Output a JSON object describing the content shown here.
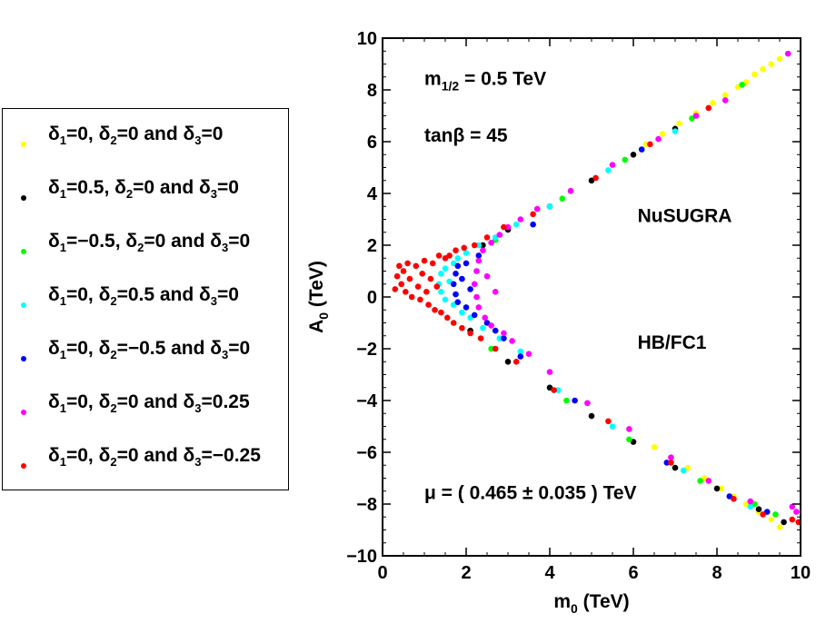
{
  "legend": {
    "entries": [
      {
        "label_html": "δ<sub>1</sub>=0, δ<sub>2</sub>=0 and δ<sub>3</sub>=0",
        "color": "#ffff00"
      },
      {
        "label_html": "δ<sub>1</sub>=0.5, δ<sub>2</sub>=0 and δ<sub>3</sub>=0",
        "color": "#000000"
      },
      {
        "label_html": "δ<sub>1</sub>=−0.5, δ<sub>2</sub>=0 and δ<sub>3</sub>=0",
        "color": "#00ff00"
      },
      {
        "label_html": "δ<sub>1</sub>=0, δ<sub>2</sub>=0.5 and δ<sub>3</sub>=0",
        "color": "#00ffff"
      },
      {
        "label_html": "δ<sub>1</sub>=0, δ<sub>2</sub>=−0.5 and δ<sub>3</sub>=0",
        "color": "#0000ff"
      },
      {
        "label_html": "δ<sub>1</sub>=0, δ<sub>2</sub>=0 and δ<sub>3</sub>=0.25",
        "color": "#ff00ff"
      },
      {
        "label_html": "δ<sub>1</sub>=0, δ<sub>2</sub>=0 and δ<sub>3</sub>=−0.25",
        "color": "#ff0000"
      }
    ]
  },
  "chart_data": {
    "type": "scatter",
    "xlabel": "m",
    "xlabel_sub": "0",
    "xlabel_unit": " (TeV)",
    "ylabel": "A",
    "ylabel_sub": "0",
    "ylabel_unit": " (TeV)",
    "xlim": [
      0,
      10
    ],
    "ylim": [
      -10,
      10
    ],
    "x_ticks": [
      0,
      2,
      4,
      6,
      8,
      10
    ],
    "y_ticks": [
      -10,
      -8,
      -6,
      -4,
      -2,
      0,
      2,
      4,
      6,
      8,
      10
    ],
    "annotations": [
      {
        "id": "mhalf",
        "text": "m",
        "sub": "1/2",
        "rest": " = 0.5 TeV",
        "x": 1.0,
        "y": 8.2
      },
      {
        "id": "tanb",
        "text": "tanβ = 45",
        "x": 1.0,
        "y": 6.0
      },
      {
        "id": "nusugra",
        "text": "NuSUGRA",
        "x": 6.1,
        "y": 2.9
      },
      {
        "id": "hbfc1",
        "text": "HB/FC1",
        "x": 6.1,
        "y": -2.0
      },
      {
        "id": "mu",
        "text": "μ = ( 0.465 ± 0.035 ) TeV",
        "x": 1.0,
        "y": -7.8
      }
    ],
    "series": [
      {
        "name": "δ1=0, δ2=0 and δ3=0",
        "color": "#ffff00",
        "points": [
          [
            9.5,
            9.2
          ],
          [
            9.3,
            9.0
          ],
          [
            9.1,
            8.8
          ],
          [
            8.9,
            8.6
          ],
          [
            8.7,
            8.3
          ],
          [
            8.5,
            8.1
          ],
          [
            8.2,
            7.8
          ],
          [
            7.9,
            7.5
          ],
          [
            7.5,
            7.1
          ],
          [
            7.1,
            6.7
          ],
          [
            6.7,
            6.3
          ],
          [
            6.3,
            5.9
          ],
          [
            9.5,
            -8.9
          ],
          [
            9.3,
            -8.6
          ],
          [
            9.0,
            -8.3
          ],
          [
            8.7,
            -8.0
          ],
          [
            8.4,
            -7.7
          ],
          [
            8.1,
            -7.4
          ],
          [
            7.7,
            -7.0
          ],
          [
            7.3,
            -6.6
          ],
          [
            6.9,
            -6.2
          ],
          [
            6.5,
            -5.8
          ]
        ]
      },
      {
        "name": "δ1=0.5, δ2=0 and δ3=0",
        "color": "#000000",
        "points": [
          [
            7.0,
            6.5
          ],
          [
            6.0,
            5.5
          ],
          [
            5.0,
            4.5
          ],
          [
            4.0,
            3.5
          ],
          [
            3.0,
            2.6
          ],
          [
            2.4,
            2.0
          ],
          [
            2.1,
            -1.3
          ],
          [
            3.0,
            -2.5
          ],
          [
            4.0,
            -3.5
          ],
          [
            5.0,
            -4.6
          ],
          [
            6.0,
            -5.6
          ],
          [
            7.0,
            -6.6
          ],
          [
            8.0,
            -7.4
          ],
          [
            9.0,
            -8.2
          ],
          [
            9.6,
            -8.7
          ]
        ]
      },
      {
        "name": "δ1=−0.5, δ2=0 and δ3=0",
        "color": "#00ff00",
        "points": [
          [
            8.6,
            8.2
          ],
          [
            7.4,
            6.9
          ],
          [
            5.8,
            5.3
          ],
          [
            4.3,
            3.8
          ],
          [
            2.7,
            2.2
          ],
          [
            2.6,
            -2.0
          ],
          [
            4.4,
            -4.0
          ],
          [
            5.9,
            -5.5
          ],
          [
            7.6,
            -7.1
          ],
          [
            8.9,
            -8.0
          ],
          [
            9.4,
            -8.4
          ]
        ]
      },
      {
        "name": "δ1=0, δ2=0.5 and δ3=0",
        "color": "#00ffff",
        "points": [
          [
            1.35,
            0.5
          ],
          [
            1.4,
            0.9
          ],
          [
            1.4,
            0.2
          ],
          [
            1.5,
            1.1
          ],
          [
            1.5,
            -0.1
          ],
          [
            1.6,
            0.6
          ],
          [
            1.7,
            1.3
          ],
          [
            1.7,
            -0.3
          ],
          [
            1.8,
            1.5
          ],
          [
            1.9,
            -0.6
          ],
          [
            2.0,
            1.7
          ],
          [
            2.1,
            -0.8
          ],
          [
            2.3,
            2.0
          ],
          [
            2.4,
            -1.2
          ],
          [
            2.7,
            2.3
          ],
          [
            2.8,
            -1.6
          ],
          [
            3.2,
            2.8
          ],
          [
            3.3,
            -2.1
          ],
          [
            4.0,
            3.5
          ],
          [
            4.2,
            -3.6
          ],
          [
            5.4,
            4.9
          ],
          [
            5.5,
            -5.0
          ],
          [
            7.0,
            6.4
          ],
          [
            7.2,
            -6.7
          ],
          [
            8.8,
            -8.1
          ]
        ]
      },
      {
        "name": "δ1=0, δ2=−0.5 and δ3=0",
        "color": "#0000ff",
        "points": [
          [
            1.7,
            0.5
          ],
          [
            1.75,
            0.9
          ],
          [
            1.75,
            0.1
          ],
          [
            1.8,
            1.2
          ],
          [
            1.8,
            -0.2
          ],
          [
            1.9,
            0.7
          ],
          [
            2.0,
            1.3
          ],
          [
            2.0,
            -0.4
          ],
          [
            2.1,
            0.3
          ],
          [
            2.2,
            -0.7
          ],
          [
            2.3,
            1.6
          ],
          [
            2.5,
            -1.0
          ],
          [
            2.7,
            -1.3
          ],
          [
            2.9,
            -1.6
          ],
          [
            3.3,
            -2.3
          ],
          [
            3.6,
            2.8
          ],
          [
            4.6,
            -4.0
          ],
          [
            6.2,
            5.7
          ],
          [
            6.8,
            -6.4
          ],
          [
            8.3,
            -7.7
          ],
          [
            9.2,
            -8.3
          ]
        ]
      },
      {
        "name": "δ1=0, δ2=0 and δ3=0.25",
        "color": "#ff00ff",
        "points": [
          [
            2.2,
            0.5
          ],
          [
            2.25,
            1.0
          ],
          [
            2.25,
            0.0
          ],
          [
            2.3,
            1.4
          ],
          [
            2.3,
            -0.4
          ],
          [
            2.4,
            1.8
          ],
          [
            2.45,
            -0.8
          ],
          [
            2.5,
            0.8
          ],
          [
            2.6,
            2.1
          ],
          [
            2.6,
            -1.1
          ],
          [
            2.7,
            0.2
          ],
          [
            2.8,
            2.4
          ],
          [
            2.9,
            -1.4
          ],
          [
            3.0,
            2.7
          ],
          [
            3.1,
            -1.7
          ],
          [
            3.3,
            3.0
          ],
          [
            3.5,
            -2.2
          ],
          [
            3.7,
            3.4
          ],
          [
            4.0,
            -2.9
          ],
          [
            4.5,
            4.1
          ],
          [
            4.9,
            -4.1
          ],
          [
            5.5,
            5.1
          ],
          [
            5.9,
            -5.1
          ],
          [
            6.6,
            6.1
          ],
          [
            6.9,
            -6.2
          ],
          [
            7.5,
            7.0
          ],
          [
            7.8,
            -7.1
          ],
          [
            8.2,
            7.6
          ],
          [
            8.8,
            -7.9
          ],
          [
            9.7,
            9.4
          ],
          [
            9.8,
            -8.1
          ],
          [
            9.9,
            -8.3
          ]
        ]
      },
      {
        "name": "δ1=0, δ2=0 and δ3=−0.25",
        "color": "#ff0000",
        "points": [
          [
            0.3,
            0.3
          ],
          [
            0.35,
            0.8
          ],
          [
            0.4,
            1.2
          ],
          [
            0.45,
            0.5
          ],
          [
            0.5,
            1.0
          ],
          [
            0.55,
            0.2
          ],
          [
            0.6,
            1.3
          ],
          [
            0.65,
            0.7
          ],
          [
            0.7,
            0.0
          ],
          [
            0.8,
            1.2
          ],
          [
            0.85,
            0.4
          ],
          [
            0.9,
            -0.1
          ],
          [
            0.95,
            0.9
          ],
          [
            1.0,
            1.4
          ],
          [
            1.05,
            0.2
          ],
          [
            1.1,
            -0.3
          ],
          [
            1.15,
            0.7
          ],
          [
            1.2,
            1.3
          ],
          [
            1.25,
            -0.5
          ],
          [
            1.3,
            0.4
          ],
          [
            1.35,
            1.6
          ],
          [
            1.4,
            -0.6
          ],
          [
            1.5,
            1.5
          ],
          [
            1.55,
            -0.8
          ],
          [
            1.6,
            1.6
          ],
          [
            1.7,
            -1.0
          ],
          [
            1.75,
            1.8
          ],
          [
            1.9,
            -1.2
          ],
          [
            1.95,
            1.9
          ],
          [
            2.1,
            -1.4
          ],
          [
            2.2,
            2.0
          ],
          [
            2.35,
            -1.6
          ],
          [
            2.5,
            2.3
          ],
          [
            2.7,
            -2.0
          ],
          [
            2.9,
            2.7
          ],
          [
            3.2,
            -2.5
          ],
          [
            3.6,
            3.2
          ],
          [
            4.1,
            -3.6
          ],
          [
            5.1,
            4.6
          ],
          [
            5.4,
            -4.8
          ],
          [
            6.4,
            5.9
          ],
          [
            6.9,
            -6.4
          ],
          [
            7.8,
            7.3
          ],
          [
            8.4,
            -7.8
          ],
          [
            9.1,
            -8.4
          ],
          [
            9.8,
            -8.6
          ],
          [
            9.95,
            -8.7
          ]
        ]
      }
    ]
  }
}
